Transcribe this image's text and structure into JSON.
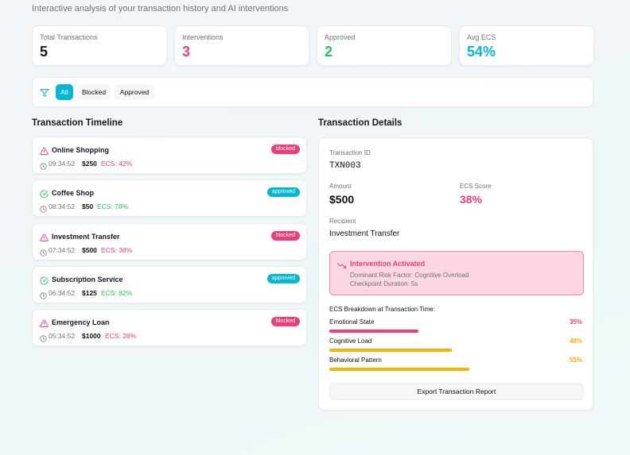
{
  "header": {
    "subtitle": "Interactive analysis of your transaction history and AI interventions"
  },
  "stats": [
    {
      "label": "Total Transactions",
      "value": "5",
      "color": "#111827"
    },
    {
      "label": "Interventions",
      "value": "3",
      "color": "#ec3d7a"
    },
    {
      "label": "Approved",
      "value": "2",
      "color": "#22c55e"
    },
    {
      "label": "Avg ECS",
      "value": "54%",
      "color": "#06b6d4"
    }
  ],
  "filters": [
    "All",
    "Blocked",
    "Approved"
  ],
  "timeline": {
    "title": "Transaction Timeline",
    "items": [
      {
        "name": "Online Shopping",
        "status": "blocked",
        "time": "09:34:52",
        "amount": "$250",
        "ecs": "ECS: 42%"
      },
      {
        "name": "Coffee Shop",
        "status": "approved",
        "time": "08:34:52",
        "amount": "$50",
        "ecs": "ECS: 78%"
      },
      {
        "name": "Investment Transfer",
        "status": "blocked",
        "time": "07:34:52",
        "amount": "$500",
        "ecs": "ECS: 38%"
      },
      {
        "name": "Subscription Service",
        "status": "approved",
        "time": "06:34:52",
        "amount": "$125",
        "ecs": "ECS: 82%"
      },
      {
        "name": "Emergency Loan",
        "status": "blocked",
        "time": "05:34:52",
        "amount": "$1000",
        "ecs": "ECS: 28%"
      }
    ]
  },
  "details": {
    "title": "Transaction Details",
    "id_label": "Transaction ID",
    "id": "TXN003",
    "amount_label": "Amount",
    "amount": "$500",
    "ecs_label": "ECS Score",
    "ecs": "38%",
    "recipient_label": "Recipient",
    "recipient": "Investment Transfer",
    "intervention": {
      "title": "Intervention Activated",
      "lines": [
        "Dominant Risk Factor: Cognitive Overload",
        "Checkpoint Duration: 5s"
      ]
    },
    "breakdown_title": "ECS Breakdown at Transaction Time:",
    "breakdown": [
      {
        "label": "Emotional State",
        "value": 35,
        "value_label": "35%",
        "color": "#ec3d7a"
      },
      {
        "label": "Cognitive Load",
        "value": 48,
        "value_label": "48%",
        "color": "#f4b400"
      },
      {
        "label": "Behavioral Pattern",
        "value": 55,
        "value_label": "55%",
        "color": "#f4b400"
      }
    ],
    "export": "Export Transaction Report"
  }
}
